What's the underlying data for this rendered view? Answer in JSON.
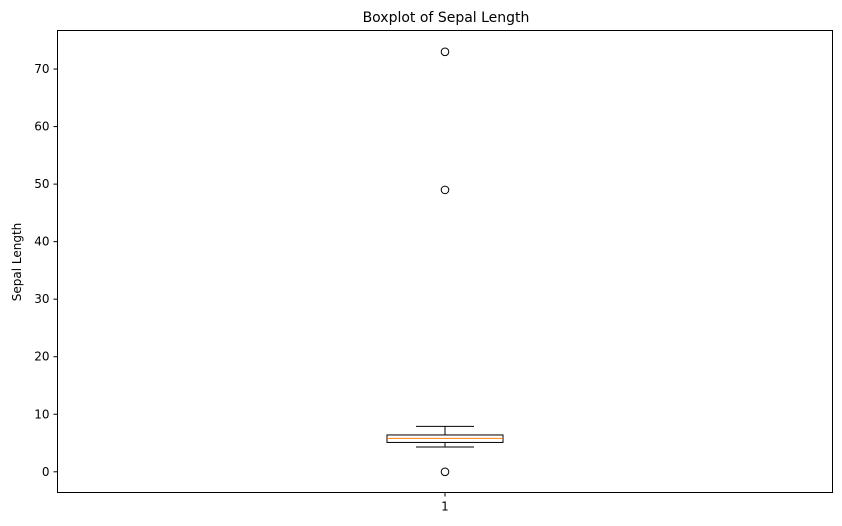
{
  "chart_data": {
    "type": "box",
    "title": "Boxplot of Sepal Length",
    "xlabel": "",
    "ylabel": "Sepal Length",
    "ylim": [
      -3.6,
      76.7
    ],
    "y_ticks": [
      0,
      10,
      20,
      30,
      40,
      50,
      60,
      70
    ],
    "x_ticks": [
      "1"
    ],
    "grid": false,
    "series": [
      {
        "category": "1",
        "whisker_low": 4.3,
        "q1": 5.1,
        "median": 5.8,
        "q3": 6.4,
        "whisker_high": 7.9,
        "outliers": [
          73,
          49,
          0
        ]
      }
    ],
    "colors": {
      "box": "#000000",
      "median": "#ff7f0e",
      "outlier_edge": "#000000"
    }
  }
}
